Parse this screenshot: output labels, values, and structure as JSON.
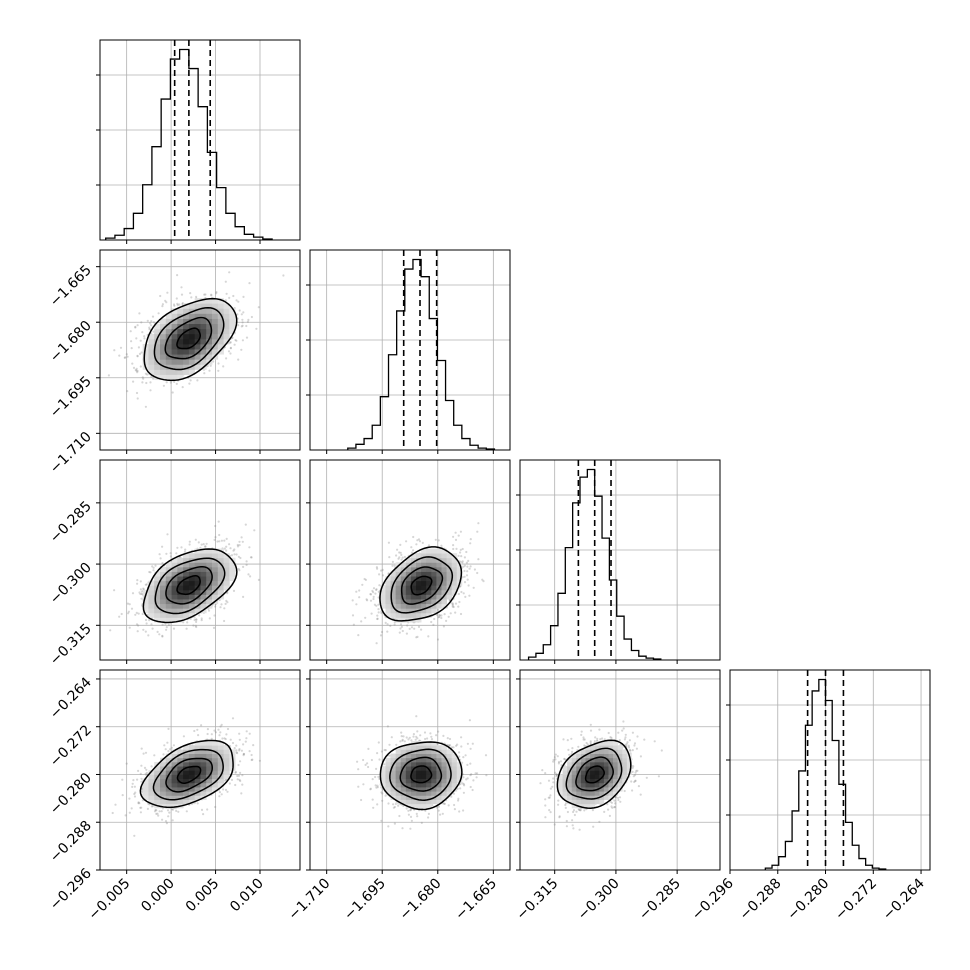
{
  "chart_data": {
    "type": "corner",
    "parameters": [
      {
        "id": "p1",
        "range": [
          -0.008,
          0.0145
        ],
        "mean": 0.002,
        "std": 0.0026,
        "quantiles": [
          0.0004,
          0.002,
          0.0044
        ],
        "ticks": [
          {
            "v": -0.005,
            "label": "−0.005"
          },
          {
            "v": 0.0,
            "label": "0.000"
          },
          {
            "v": 0.005,
            "label": "0.005"
          },
          {
            "v": 0.01,
            "label": "0.010"
          }
        ]
      },
      {
        "id": "p2",
        "range": [
          -1.7145,
          -1.6605
        ],
        "mean": -1.6845,
        "std": 0.0055,
        "quantiles": [
          -1.6892,
          -1.6848,
          -1.6803
        ],
        "ticks": [
          {
            "v": -1.71,
            "label": "−1.710"
          },
          {
            "v": -1.695,
            "label": "−1.695"
          },
          {
            "v": -1.68,
            "label": "−1.680"
          },
          {
            "v": -1.665,
            "label": "−1.665"
          }
        ]
      },
      {
        "id": "p3",
        "range": [
          -0.3235,
          -0.2745
        ],
        "mean": -0.3052,
        "std": 0.0045,
        "quantiles": [
          -0.3092,
          -0.3052,
          -0.3012
        ],
        "ticks": [
          {
            "v": -0.315,
            "label": "−0.315"
          },
          {
            "v": -0.3,
            "label": "−0.300"
          },
          {
            "v": -0.285,
            "label": "−0.285"
          }
        ]
      },
      {
        "id": "p4",
        "range": [
          -0.296,
          -0.2625
        ],
        "mean": -0.28,
        "std": 0.0028,
        "quantiles": [
          -0.283,
          -0.28,
          -0.277
        ],
        "ticks": [
          {
            "v": -0.296,
            "label": "−0.296"
          },
          {
            "v": -0.288,
            "label": "−0.288"
          },
          {
            "v": -0.28,
            "label": "−0.280"
          },
          {
            "v": -0.272,
            "label": "−0.272"
          },
          {
            "v": -0.264,
            "label": "−0.264"
          }
        ]
      }
    ],
    "correlations": {
      "1-0": 0.45,
      "2-0": 0.45,
      "2-1": 0.35,
      "3-0": 0.45,
      "3-1": 0.05,
      "3-2": 0.3
    },
    "histograms": [
      [
        2,
        5,
        12,
        28,
        58,
        98,
        148,
        190,
        200,
        180,
        140,
        92,
        55,
        28,
        14,
        6,
        3,
        1
      ],
      [
        2,
        6,
        12,
        26,
        56,
        100,
        146,
        190,
        200,
        182,
        138,
        94,
        52,
        26,
        12,
        5,
        2,
        1
      ],
      [
        3,
        7,
        16,
        36,
        70,
        118,
        165,
        192,
        200,
        172,
        128,
        84,
        46,
        22,
        10,
        4,
        2,
        1
      ],
      [
        2,
        5,
        14,
        30,
        62,
        104,
        152,
        188,
        200,
        178,
        136,
        90,
        50,
        26,
        12,
        5,
        2,
        1
      ]
    ],
    "contour_levels_sigma": [
      0.5,
      1.0,
      1.5,
      2.0
    ],
    "grid": true,
    "xlabel": "",
    "ylabel": ""
  },
  "colors": {
    "line": "#000000",
    "grid": "#b0b0b0",
    "points": "#8a8a8a",
    "background": "#ffffff"
  }
}
